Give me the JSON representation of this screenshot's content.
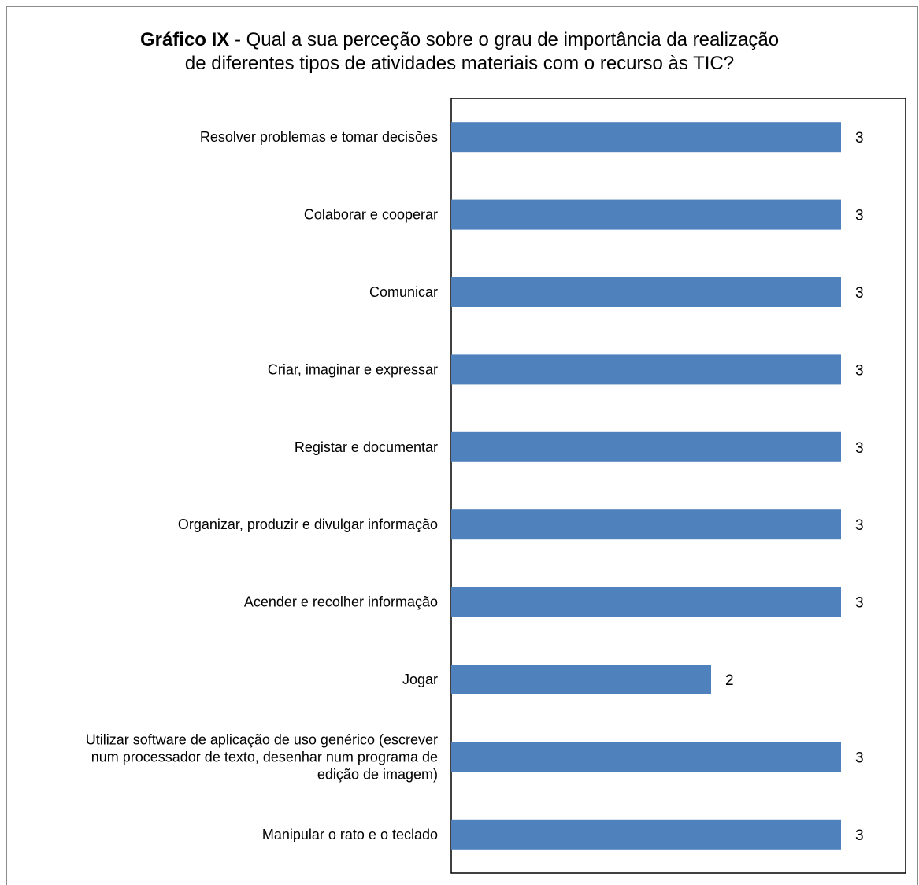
{
  "chart_data": {
    "type": "bar",
    "orientation": "horizontal",
    "title_bold": "Gráfico IX",
    "title_line1_rest": " - Qual a sua perceção sobre o grau de importância da realização",
    "title_line2": "de diferentes tipos de atividades materiais com o recurso às TIC?",
    "categories": [
      [
        "Resolver problemas e tomar decisões"
      ],
      [
        "Colaborar e cooperar"
      ],
      [
        "Comunicar"
      ],
      [
        "Criar, imaginar e expressar"
      ],
      [
        "Registar e documentar"
      ],
      [
        "Organizar, produzir e divulgar informação"
      ],
      [
        "Acender e recolher informação"
      ],
      [
        "Jogar"
      ],
      [
        "Utilizar software de aplicação de uso genérico (escrever",
        "num processador de texto, desenhar num programa de",
        "edição de imagem)"
      ],
      [
        "Manipular o rato e o teclado"
      ]
    ],
    "values": [
      3,
      3,
      3,
      3,
      3,
      3,
      3,
      2,
      3,
      3
    ],
    "xlim": [
      0,
      3.1
    ],
    "data_labels": true,
    "grid": false,
    "legend": "none",
    "bar_color": "#4f81bd"
  }
}
